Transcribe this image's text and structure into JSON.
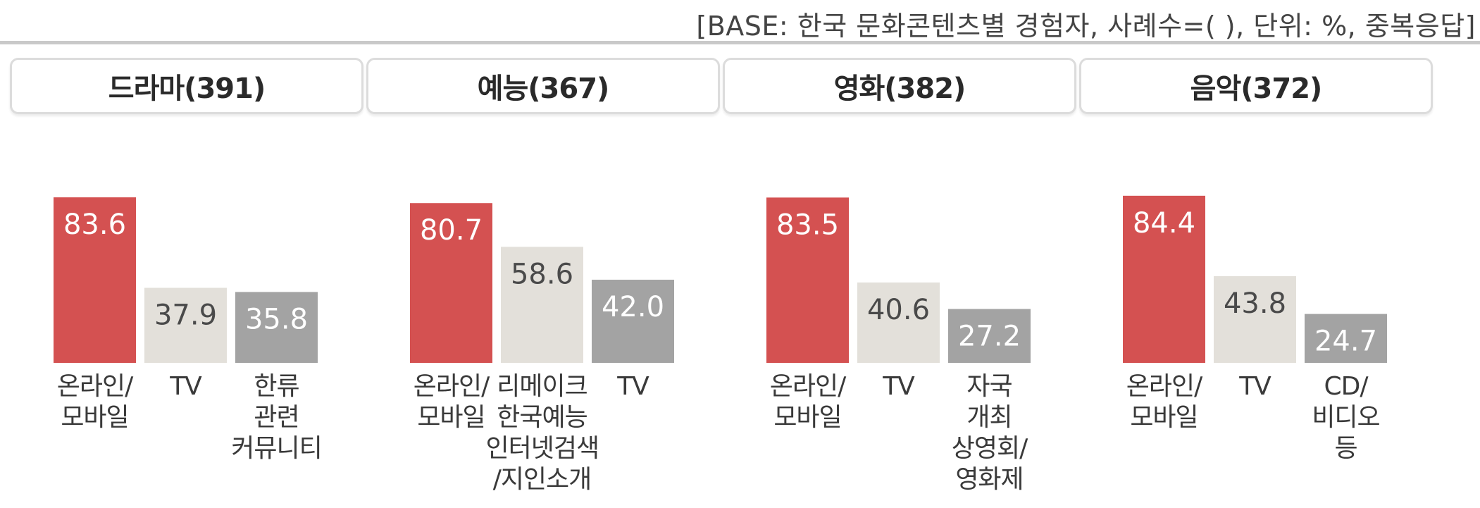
{
  "base_note": "[BASE: 한국 문화콘텐츠별 경험자, 사례수=( ), 단위: %, 중복응답]",
  "colors": {
    "primary": "#d45151",
    "secondary": "#e3e0da",
    "tertiary": "#a3a3a3"
  },
  "chart_data": {
    "type": "bar",
    "panels": [
      {
        "title": "드라마(391)",
        "categories": [
          [
            "온라인/",
            "모바일"
          ],
          [
            "TV"
          ],
          [
            "한류",
            "관련",
            "커뮤니티"
          ]
        ],
        "values": [
          83.6,
          37.9,
          35.8
        ]
      },
      {
        "title": "예능(367)",
        "categories": [
          [
            "온라인/",
            "모바일"
          ],
          [
            "리메이크",
            "한국예능",
            "인터넷검색",
            "/지인소개"
          ],
          [
            "TV"
          ]
        ],
        "values": [
          80.7,
          58.6,
          42.0
        ]
      },
      {
        "title": "영화(382)",
        "categories": [
          [
            "온라인/",
            "모바일"
          ],
          [
            "TV"
          ],
          [
            "자국",
            "개최",
            "상영회/",
            "영화제"
          ]
        ],
        "values": [
          83.5,
          40.6,
          27.2
        ]
      },
      {
        "title": "음악(372)",
        "categories": [
          [
            "온라인/",
            "모바일"
          ],
          [
            "TV"
          ],
          [
            "CD/",
            "비디오",
            "등"
          ]
        ],
        "values": [
          84.4,
          43.8,
          24.7
        ]
      }
    ],
    "ylim": [
      0,
      100
    ],
    "grid": false,
    "legend": "none"
  }
}
